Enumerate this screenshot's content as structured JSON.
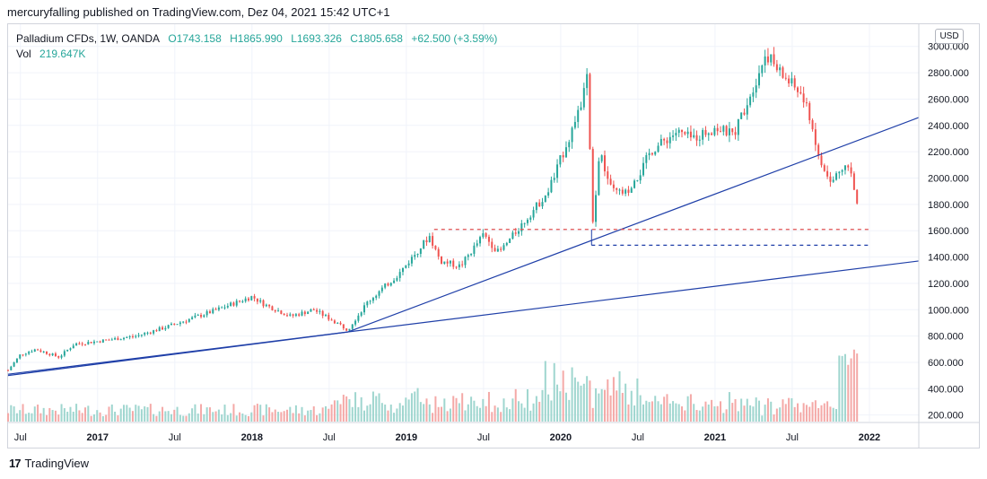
{
  "header": {
    "publish_line": "mercuryfalling published on TradingView.com, Dez 04, 2021 15:42 UTC+1"
  },
  "legend": {
    "symbol": "Palladium CFDs, 1W, OANDA",
    "open": "O1743.158",
    "high": "H1865.990",
    "low": "L1693.326",
    "close": "C1805.658",
    "change": "+62.500 (+3.59%)",
    "vol_label": "Vol",
    "vol_value": "219.647K"
  },
  "currency_badge": "USD",
  "footer": {
    "brand": "TradingView",
    "logo_text": "17"
  },
  "colors": {
    "up": "#26a69a",
    "down": "#ef5350",
    "vol_up": "#9fd6cf",
    "vol_down": "#f4a9a7",
    "trend": "#1f3fa8",
    "red_dash": "#e05050",
    "blue_dash": "#1f3fa8"
  },
  "chart_data": {
    "type": "candlestick",
    "title": "Palladium CFDs, 1W, OANDA",
    "ylim": [
      150,
      3080
    ],
    "y_ticks": [
      200,
      400,
      600,
      800,
      1000,
      1200,
      1400,
      1600,
      1800,
      2000,
      2200,
      2400,
      2600,
      2800,
      3000
    ],
    "y_tick_labels": [
      "200.000",
      "400.000",
      "600.000",
      "800.000",
      "1000.000",
      "1200.000",
      "1400.000",
      "1600.000",
      "1800.000",
      "2000.000",
      "2200.000",
      "2400.000",
      "2600.000",
      "2800.000",
      "3000.000"
    ],
    "x_range": [
      2016.42,
      2022.32
    ],
    "x_ticks": [
      {
        "t": 2016.5,
        "label": "Jul"
      },
      {
        "t": 2017.0,
        "label": "2017"
      },
      {
        "t": 2017.5,
        "label": "Jul"
      },
      {
        "t": 2018.0,
        "label": "2018"
      },
      {
        "t": 2018.5,
        "label": "Jul"
      },
      {
        "t": 2019.0,
        "label": "2019"
      },
      {
        "t": 2019.5,
        "label": "Jul"
      },
      {
        "t": 2020.0,
        "label": "2020"
      },
      {
        "t": 2020.5,
        "label": "Jul"
      },
      {
        "t": 2021.0,
        "label": "2021"
      },
      {
        "t": 2021.5,
        "label": "Jul"
      },
      {
        "t": 2022.0,
        "label": "2022"
      }
    ],
    "price_path": [
      {
        "t": 2016.42,
        "p": 540
      },
      {
        "t": 2016.5,
        "p": 660
      },
      {
        "t": 2016.6,
        "p": 700
      },
      {
        "t": 2016.75,
        "p": 640
      },
      {
        "t": 2016.85,
        "p": 740
      },
      {
        "t": 2017.0,
        "p": 760
      },
      {
        "t": 2017.25,
        "p": 800
      },
      {
        "t": 2017.45,
        "p": 870
      },
      {
        "t": 2017.75,
        "p": 990
      },
      {
        "t": 2018.0,
        "p": 1100
      },
      {
        "t": 2018.08,
        "p": 1040
      },
      {
        "t": 2018.25,
        "p": 950
      },
      {
        "t": 2018.4,
        "p": 1000
      },
      {
        "t": 2018.55,
        "p": 900
      },
      {
        "t": 2018.62,
        "p": 850
      },
      {
        "t": 2018.75,
        "p": 1060
      },
      {
        "t": 2018.95,
        "p": 1270
      },
      {
        "t": 2019.15,
        "p": 1560
      },
      {
        "t": 2019.22,
        "p": 1370
      },
      {
        "t": 2019.35,
        "p": 1330
      },
      {
        "t": 2019.5,
        "p": 1570
      },
      {
        "t": 2019.6,
        "p": 1430
      },
      {
        "t": 2019.75,
        "p": 1650
      },
      {
        "t": 2019.92,
        "p": 1900
      },
      {
        "t": 2020.05,
        "p": 2300
      },
      {
        "t": 2020.12,
        "p": 2500
      },
      {
        "t": 2020.17,
        "p": 2760
      },
      {
        "t": 2020.21,
        "p": 1600
      },
      {
        "t": 2020.25,
        "p": 2200
      },
      {
        "t": 2020.33,
        "p": 1900
      },
      {
        "t": 2020.45,
        "p": 1880
      },
      {
        "t": 2020.58,
        "p": 2200
      },
      {
        "t": 2020.75,
        "p": 2350
      },
      {
        "t": 2020.85,
        "p": 2300
      },
      {
        "t": 2021.0,
        "p": 2380
      },
      {
        "t": 2021.12,
        "p": 2330
      },
      {
        "t": 2021.25,
        "p": 2700
      },
      {
        "t": 2021.33,
        "p": 2950
      },
      {
        "t": 2021.42,
        "p": 2800
      },
      {
        "t": 2021.55,
        "p": 2650
      },
      {
        "t": 2021.62,
        "p": 2450
      },
      {
        "t": 2021.67,
        "p": 2150
      },
      {
        "t": 2021.75,
        "p": 1950
      },
      {
        "t": 2021.82,
        "p": 2100
      },
      {
        "t": 2021.88,
        "p": 2030
      },
      {
        "t": 2021.92,
        "p": 1805
      }
    ],
    "annotations": {
      "trendline_1": {
        "from": {
          "t": 2016.42,
          "p": 500
        },
        "to": {
          "t": 2018.62,
          "p": 830
        }
      },
      "trendline_2": {
        "from": {
          "t": 2016.42,
          "p": 510
        },
        "to": {
          "t": 2022.32,
          "p": 1370
        }
      },
      "trendline_3": {
        "from": {
          "t": 2018.62,
          "p": 830
        },
        "to": {
          "t": 2022.32,
          "p": 2460
        }
      },
      "red_dashed_level": {
        "p": 1610,
        "from_t": 2019.18,
        "to_t": 2022.0
      },
      "blue_dashed_level": {
        "p": 1490,
        "from_t": 2020.2,
        "to_t": 2022.0
      }
    },
    "volume_note": "Vol 219.647K"
  }
}
